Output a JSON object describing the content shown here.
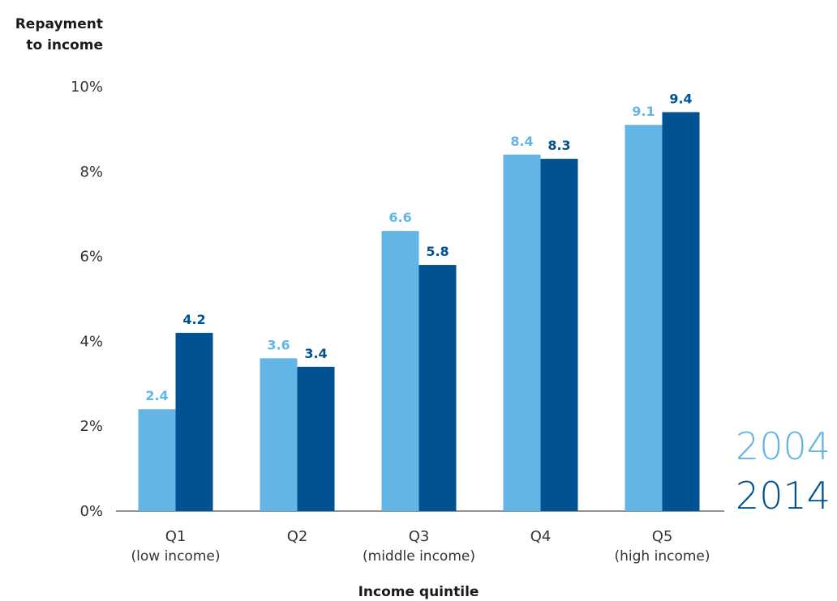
{
  "chart_data": {
    "type": "bar",
    "ylabel_lines": [
      "Repayment",
      "to income"
    ],
    "xlabel": "Income quintile",
    "y_ticks": [
      "0%",
      "2%",
      "4%",
      "6%",
      "8%",
      "10%"
    ],
    "ylim": [
      0,
      10
    ],
    "categories": [
      {
        "label": "Q1",
        "sublabel": "(low income)"
      },
      {
        "label": "Q2",
        "sublabel": ""
      },
      {
        "label": "Q3",
        "sublabel": "(middle income)"
      },
      {
        "label": "Q4",
        "sublabel": ""
      },
      {
        "label": "Q5",
        "sublabel": "(high income)"
      }
    ],
    "series": [
      {
        "name": "2004",
        "color": "#62b5e5",
        "values": [
          2.4,
          3.6,
          6.6,
          8.4,
          9.1
        ]
      },
      {
        "name": "2014",
        "color": "#005293",
        "values": [
          4.2,
          3.4,
          5.8,
          8.3,
          9.4
        ]
      }
    ],
    "legend_position": "bottom-right",
    "grid": false
  }
}
